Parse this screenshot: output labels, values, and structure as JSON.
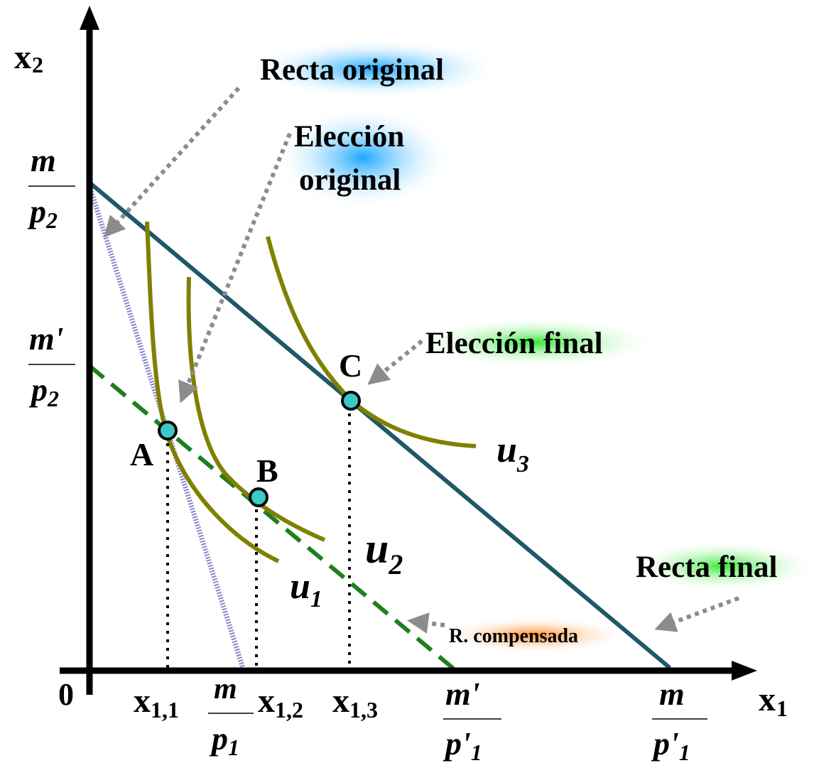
{
  "axes": {
    "y_main": "x",
    "y_sub": "2",
    "x_main": "x",
    "x_sub": "1",
    "origin": "0"
  },
  "y_ticks": {
    "m_over_p2": {
      "num": "m",
      "den_main": "p",
      "den_sub": "2"
    },
    "mprime_over_p2": {
      "num": "m'",
      "den_main": "p",
      "den_sub": "2"
    }
  },
  "x_ticks": {
    "x11": {
      "main": "x",
      "sub": "1,1"
    },
    "m_over_p1": {
      "num": "m",
      "den_main": "p",
      "den_sub": "1"
    },
    "x12": {
      "main": "x",
      "sub": "1,2"
    },
    "x13": {
      "main": "x",
      "sub": "1,3"
    },
    "mprime_over_pprime1": {
      "num": "m'",
      "den_main": "p'",
      "den_sub": "1"
    },
    "m_over_pprime1": {
      "num": "m",
      "den_main": "p'",
      "den_sub": "1"
    }
  },
  "points": {
    "A": "A",
    "B": "B",
    "C": "C"
  },
  "curves": {
    "u1": {
      "main": "u",
      "sub": "1"
    },
    "u2": {
      "main": "u",
      "sub": "2"
    },
    "u3": {
      "main": "u",
      "sub": "3"
    }
  },
  "annotations": {
    "recta_original": "Recta original",
    "eleccion_original_line1": "Elección",
    "eleccion_original_line2": "original",
    "eleccion_final": "Elección final",
    "recta_final": "Recta final",
    "r_compensada": "R. compensada"
  },
  "colors": {
    "axis": "#000000",
    "final_budget_line": "#1f5868",
    "original_budget_line": "#8a86c8",
    "compensated_line": "#1e7f1e",
    "indifference_curves": "#808000",
    "points_fill": "#3cc8c8",
    "arrows": "#8c8c8c",
    "glow_blue": "#19a8ff",
    "glow_green": "#38e838",
    "glow_orange": "#ff8a2a"
  }
}
